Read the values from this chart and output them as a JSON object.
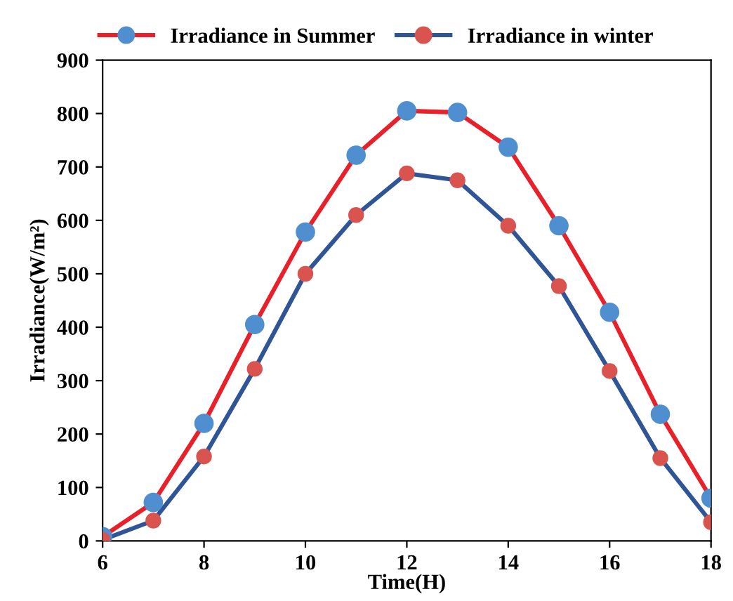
{
  "chart_data": {
    "type": "line",
    "xlabel": "Time(H)",
    "ylabel": "Irradiance(W/m²)",
    "x": [
      6,
      7,
      8,
      9,
      10,
      11,
      12,
      13,
      14,
      15,
      16,
      17,
      18
    ],
    "series": [
      {
        "name": "Irradiance in Summer",
        "color": "#e8202a",
        "colors": [
          "#4f8fd0",
          "#4f8fd0",
          "#4f8fd0",
          "#4f8fd0",
          "#4f8fd0",
          "#4f8fd0",
          "#4f8fd0",
          "#4f8fd0",
          "#4f8fd0",
          "#4f8fd0",
          "#4f8fd0",
          "#4f8fd0",
          "#4f8fd0"
        ],
        "values": [
          8,
          72,
          220,
          405,
          578,
          722,
          805,
          802,
          737,
          590,
          428,
          237,
          80
        ]
      },
      {
        "name": "Irradiance in winter",
        "color": "#2f5597",
        "colors": [
          "#d9534f",
          "#d9534f",
          "#d9534f",
          "#d9534f",
          "#d9534f",
          "#d9534f",
          "#d9534f",
          "#d9534f",
          "#d9534f",
          "#d9534f",
          "#d9534f",
          "#d9534f",
          "#d9534f"
        ],
        "values": [
          2,
          38,
          158,
          322,
          500,
          610,
          688,
          675,
          590,
          477,
          318,
          155,
          35
        ]
      }
    ],
    "xlim": [
      6,
      18
    ],
    "xticks": [
      6,
      8,
      10,
      12,
      14,
      16,
      18
    ],
    "ylim": [
      0,
      900
    ],
    "yticks": [
      0,
      100,
      200,
      300,
      400,
      500,
      600,
      700,
      800,
      900
    ],
    "grid": false,
    "legend": "top",
    "marker": "circle",
    "line_style": "solid"
  }
}
